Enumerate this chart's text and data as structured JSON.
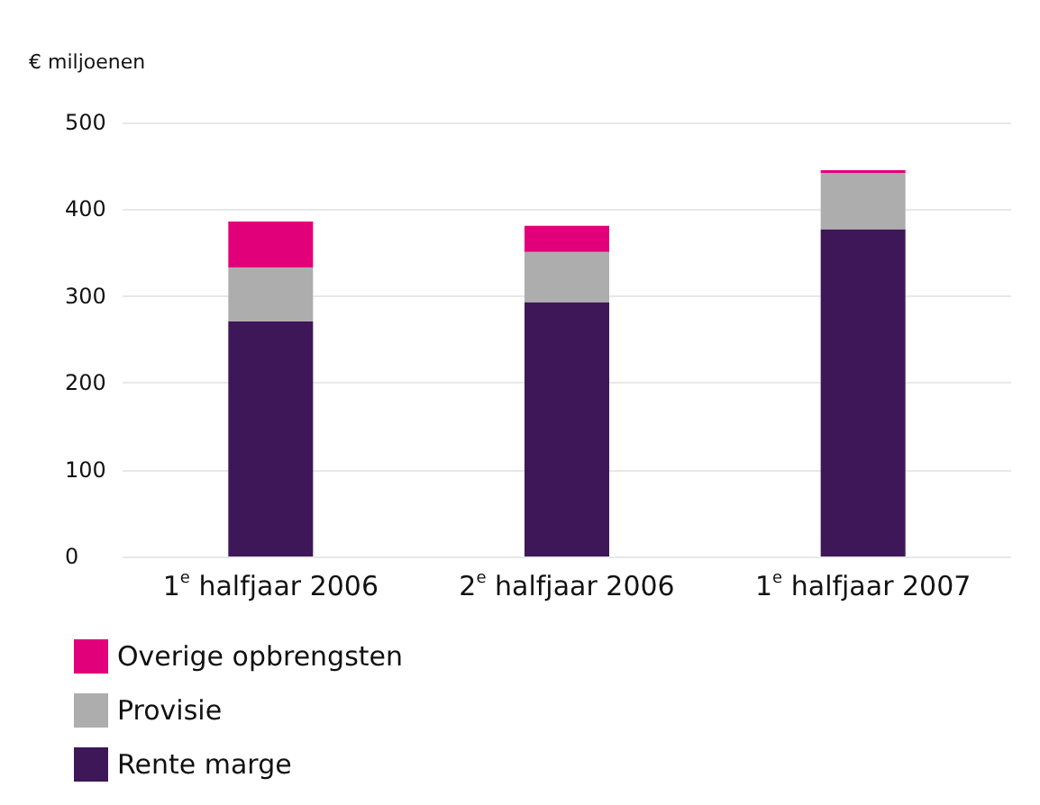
{
  "chart_data": {
    "type": "bar",
    "stacked": true,
    "ylabel": "€ miljoenen",
    "categories": [
      "1$^{e}$ halfjaar 2006",
      "2$^{e}$ halfjaar 2006",
      "1$^{e}$ halfjaar 2007"
    ],
    "series": [
      {
        "name": "Rente marge",
        "color": "#3e1759",
        "values": [
          271,
          293,
          377
        ]
      },
      {
        "name": "Provisie",
        "color": "#adadad",
        "values": [
          62,
          58,
          65
        ]
      },
      {
        "name": "Overige opbrengsten",
        "color": "#e2007a",
        "values": [
          53,
          30,
          3
        ]
      }
    ],
    "ylim": [
      0,
      500
    ],
    "yticks": [
      0,
      100,
      200,
      300,
      400,
      500
    ],
    "grid": "y",
    "legend": "bottom left"
  }
}
